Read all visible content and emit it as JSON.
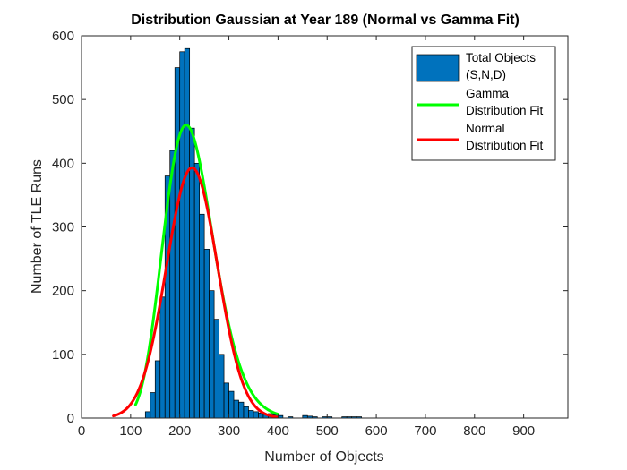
{
  "chart_data": {
    "type": "bar",
    "title": "Distribution Gaussian at Year 189 (Normal vs Gamma Fit)",
    "xlabel": "Number of Objects",
    "ylabel": "Number of TLE Runs",
    "xlim": [
      0,
      990
    ],
    "ylim": [
      0,
      600
    ],
    "xticks": [
      0,
      100,
      200,
      300,
      400,
      500,
      600,
      700,
      800,
      900
    ],
    "yticks": [
      0,
      100,
      200,
      300,
      400,
      500,
      600
    ],
    "bin_width": 10,
    "bin_edges_start": 130,
    "bins": [
      {
        "x0": 130,
        "count": 10
      },
      {
        "x0": 140,
        "count": 40
      },
      {
        "x0": 150,
        "count": 90
      },
      {
        "x0": 160,
        "count": 190
      },
      {
        "x0": 170,
        "count": 380
      },
      {
        "x0": 180,
        "count": 420
      },
      {
        "x0": 190,
        "count": 550
      },
      {
        "x0": 200,
        "count": 575
      },
      {
        "x0": 210,
        "count": 580
      },
      {
        "x0": 220,
        "count": 455
      },
      {
        "x0": 230,
        "count": 400
      },
      {
        "x0": 240,
        "count": 320
      },
      {
        "x0": 250,
        "count": 265
      },
      {
        "x0": 260,
        "count": 200
      },
      {
        "x0": 270,
        "count": 155
      },
      {
        "x0": 280,
        "count": 100
      },
      {
        "x0": 290,
        "count": 55
      },
      {
        "x0": 300,
        "count": 42
      },
      {
        "x0": 310,
        "count": 28
      },
      {
        "x0": 320,
        "count": 25
      },
      {
        "x0": 330,
        "count": 18
      },
      {
        "x0": 340,
        "count": 12
      },
      {
        "x0": 350,
        "count": 10
      },
      {
        "x0": 360,
        "count": 8
      },
      {
        "x0": 370,
        "count": 6
      },
      {
        "x0": 380,
        "count": 7
      },
      {
        "x0": 390,
        "count": 5
      },
      {
        "x0": 400,
        "count": 4
      },
      {
        "x0": 420,
        "count": 2
      },
      {
        "x0": 450,
        "count": 4
      },
      {
        "x0": 460,
        "count": 3
      },
      {
        "x0": 470,
        "count": 2
      },
      {
        "x0": 490,
        "count": 2
      },
      {
        "x0": 500,
        "count": 2
      },
      {
        "x0": 530,
        "count": 2
      },
      {
        "x0": 540,
        "count": 2
      },
      {
        "x0": 550,
        "count": 2
      },
      {
        "x0": 560,
        "count": 2
      }
    ],
    "series": [
      {
        "name": "Total Objects (S,N,D)",
        "kind": "histogram",
        "color": "#0072BD"
      },
      {
        "name": "Gamma Distribution Fit",
        "kind": "line",
        "color": "#00FF00",
        "model": "gamma",
        "peak": 460,
        "mode_x": 213,
        "shape": 18.5,
        "scale": 12.2,
        "x_range": [
          110,
          400
        ]
      },
      {
        "name": "Normal Distribution Fit",
        "kind": "line",
        "color": "#FF0000",
        "model": "normal",
        "peak": 393,
        "mean": 225,
        "sd": 52,
        "x_range": [
          65,
          400
        ]
      }
    ],
    "legend": {
      "position": "top-right",
      "entries": [
        {
          "label_lines": [
            "Total Objects",
            "(S,N,D)"
          ],
          "color": "#0072BD",
          "marker": "patch"
        },
        {
          "label_lines": [
            "Gamma",
            "Distribution Fit"
          ],
          "color": "#00FF00",
          "marker": "line"
        },
        {
          "label_lines": [
            "Normal",
            "Distribution Fit"
          ],
          "color": "#FF0000",
          "marker": "line"
        }
      ]
    },
    "grid": false
  }
}
